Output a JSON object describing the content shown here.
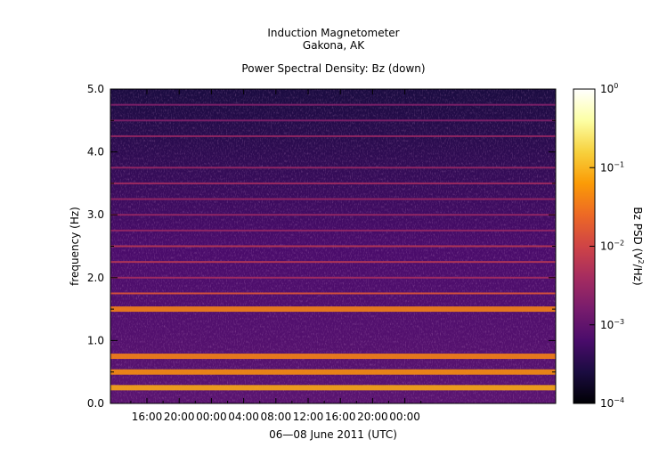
{
  "titles": {
    "line1": "Induction Magnetometer",
    "line2": "Gakona, AK",
    "line3": "Power Spectral Density: Bz (down)"
  },
  "chart_data": {
    "type": "heatmap",
    "title": "Power Spectral Density: Bz (down)",
    "xlabel": "06—08 June 2011 (UTC)",
    "ylabel": "frequency (Hz)",
    "x_tick_labels": [
      "16:00",
      "20:00",
      "00:00",
      "04:00",
      "08:00",
      "12:00",
      "16:00",
      "20:00",
      "00:00"
    ],
    "y_tick_labels": [
      "0.0",
      "1.0",
      "2.0",
      "3.0",
      "4.0",
      "5.0"
    ],
    "ylim": [
      0,
      5
    ],
    "colorbar": {
      "label_prefix": "Bz PSD (V",
      "label_sup": "2",
      "label_suffix": "/Hz)",
      "scale": "log",
      "range": [
        0.0001,
        1
      ],
      "tick_base": "10",
      "tick_exponents": [
        "0",
        "−1",
        "−2",
        "−3",
        "−4"
      ],
      "colormap": [
        "#000004",
        "#1b0c41",
        "#4a0c6b",
        "#781c6d",
        "#a52c60",
        "#cf4446",
        "#ed6925",
        "#fb9b06",
        "#f7d13d",
        "#fcffa4",
        "#ffffff"
      ]
    },
    "background_psd": 0.0004,
    "lines": [
      {
        "frequency": 0.25,
        "psd": 0.08
      },
      {
        "frequency": 0.5,
        "psd": 0.05
      },
      {
        "frequency": 0.75,
        "psd": 0.04
      },
      {
        "frequency": 1.5,
        "psd": 0.04
      },
      {
        "frequency": 1.75,
        "psd": 0.015
      },
      {
        "frequency": 2.0,
        "psd": 0.004
      },
      {
        "frequency": 2.25,
        "psd": 0.006
      },
      {
        "frequency": 2.5,
        "psd": 0.006
      },
      {
        "frequency": 2.75,
        "psd": 0.003
      },
      {
        "frequency": 3.0,
        "psd": 0.003
      },
      {
        "frequency": 3.25,
        "psd": 0.003
      },
      {
        "frequency": 3.5,
        "psd": 0.004
      },
      {
        "frequency": 3.75,
        "psd": 0.003
      },
      {
        "frequency": 4.25,
        "psd": 0.003
      },
      {
        "frequency": 4.5,
        "psd": 0.002
      },
      {
        "frequency": 4.75,
        "psd": 0.002
      }
    ]
  }
}
